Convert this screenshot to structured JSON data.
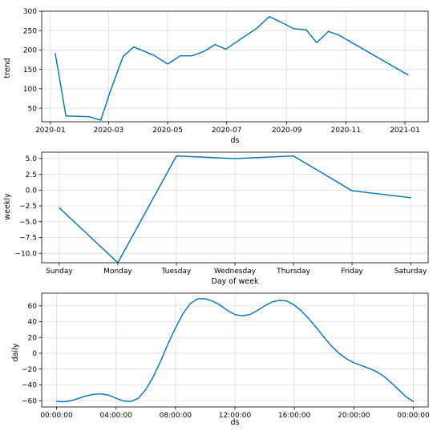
{
  "colors": {
    "series": "#0072B2"
  },
  "chart_data": [
    {
      "type": "line",
      "xlabel": "ds",
      "ylabel": "trend",
      "x_type": "date",
      "xlim": [
        "2019-12-23",
        "2021-01-25"
      ],
      "ylim": [
        15,
        300
      ],
      "grid": true,
      "xticks": [
        {
          "value": "2020-01-01",
          "label": "2020-01"
        },
        {
          "value": "2020-03-01",
          "label": "2020-03"
        },
        {
          "value": "2020-05-01",
          "label": "2020-05"
        },
        {
          "value": "2020-07-01",
          "label": "2020-07"
        },
        {
          "value": "2020-09-01",
          "label": "2020-09"
        },
        {
          "value": "2020-11-01",
          "label": "2020-11"
        },
        {
          "value": "2021-01-01",
          "label": "2021-01"
        }
      ],
      "yticks": [
        {
          "value": 50,
          "label": "50"
        },
        {
          "value": 100,
          "label": "100"
        },
        {
          "value": 150,
          "label": "150"
        },
        {
          "value": 200,
          "label": "200"
        },
        {
          "value": 250,
          "label": "250"
        },
        {
          "value": 300,
          "label": "300"
        }
      ],
      "series": [
        {
          "points": [
            [
              "2020-01-06",
              191
            ],
            [
              "2020-01-17",
              30
            ],
            [
              "2020-02-10",
              28
            ],
            [
              "2020-02-22",
              19
            ],
            [
              "2020-03-03",
              95
            ],
            [
              "2020-03-16",
              183
            ],
            [
              "2020-03-27",
              208
            ],
            [
              "2020-04-17",
              186
            ],
            [
              "2020-05-01",
              164
            ],
            [
              "2020-05-14",
              185
            ],
            [
              "2020-05-26",
              185
            ],
            [
              "2020-06-08",
              197
            ],
            [
              "2020-06-19",
              214
            ],
            [
              "2020-06-30",
              202
            ],
            [
              "2020-08-01",
              256
            ],
            [
              "2020-08-14",
              286
            ],
            [
              "2020-08-26",
              272
            ],
            [
              "2020-09-08",
              255
            ],
            [
              "2020-09-21",
              252
            ],
            [
              "2020-10-02",
              219
            ],
            [
              "2020-10-14",
              248
            ],
            [
              "2020-10-25",
              238
            ],
            [
              "2021-01-04",
              136
            ]
          ]
        }
      ]
    },
    {
      "type": "line",
      "xlabel": "Day of week",
      "ylabel": "weekly",
      "categories": [
        "Sunday",
        "Monday",
        "Tuesday",
        "Wednesday",
        "Thursday",
        "Friday",
        "Saturday"
      ],
      "xlim": [
        -0.3,
        6.3
      ],
      "ylim": [
        -11.5,
        6.0
      ],
      "grid": true,
      "yticks": [
        {
          "value": 5.0,
          "label": "5.0"
        },
        {
          "value": 2.5,
          "label": "2.5"
        },
        {
          "value": 0.0,
          "label": "0.0"
        },
        {
          "value": -2.5,
          "label": "−2.5"
        },
        {
          "value": -5.0,
          "label": "−5.0"
        },
        {
          "value": -7.5,
          "label": "−7.5"
        },
        {
          "value": -10.0,
          "label": "−10.0"
        }
      ],
      "series": [
        {
          "values": [
            -2.8,
            -11.5,
            5.4,
            5.0,
            5.4,
            -0.1,
            -1.2
          ]
        }
      ]
    },
    {
      "type": "line",
      "xlabel": "ds",
      "ylabel": "daily",
      "x_unit": "hours",
      "xlim": [
        -1.0,
        25.0
      ],
      "ylim": [
        -68,
        76
      ],
      "grid": true,
      "xticks": [
        {
          "value": 0,
          "label": "00:00:00"
        },
        {
          "value": 4,
          "label": "04:00:00"
        },
        {
          "value": 8,
          "label": "08:00:00"
        },
        {
          "value": 12,
          "label": "12:00:00"
        },
        {
          "value": 16,
          "label": "16:00:00"
        },
        {
          "value": 20,
          "label": "20:00:00"
        },
        {
          "value": 24,
          "label": "00:00:00"
        }
      ],
      "yticks": [
        {
          "value": 60,
          "label": "60"
        },
        {
          "value": 40,
          "label": "40"
        },
        {
          "value": 20,
          "label": "20"
        },
        {
          "value": 0,
          "label": "0"
        },
        {
          "value": -20,
          "label": "−20"
        },
        {
          "value": -40,
          "label": "−40"
        },
        {
          "value": -60,
          "label": "−60"
        }
      ],
      "series": [
        {
          "points": [
            [
              0,
              -61
            ],
            [
              0.5,
              -61.5
            ],
            [
              1.0,
              -60
            ],
            [
              1.5,
              -57
            ],
            [
              2.0,
              -54
            ],
            [
              2.5,
              -52
            ],
            [
              3.0,
              -51.5
            ],
            [
              3.5,
              -53
            ],
            [
              4.0,
              -57
            ],
            [
              4.5,
              -60.5
            ],
            [
              5.0,
              -61
            ],
            [
              5.5,
              -57
            ],
            [
              6.0,
              -46
            ],
            [
              6.5,
              -30
            ],
            [
              7.0,
              -10
            ],
            [
              7.5,
              12
            ],
            [
              8.0,
              32
            ],
            [
              8.5,
              50
            ],
            [
              9.0,
              63
            ],
            [
              9.5,
              69
            ],
            [
              10.0,
              69
            ],
            [
              10.5,
              66
            ],
            [
              11.0,
              61
            ],
            [
              11.5,
              54
            ],
            [
              12.0,
              49
            ],
            [
              12.5,
              47.5
            ],
            [
              13.0,
              49
            ],
            [
              13.5,
              54
            ],
            [
              14.0,
              60
            ],
            [
              14.5,
              65
            ],
            [
              15.0,
              67
            ],
            [
              15.5,
              66
            ],
            [
              16.0,
              61
            ],
            [
              16.5,
              53
            ],
            [
              17.0,
              43
            ],
            [
              17.5,
              32
            ],
            [
              18.0,
              20
            ],
            [
              18.5,
              9
            ],
            [
              19.0,
              0
            ],
            [
              19.5,
              -7
            ],
            [
              20.0,
              -12
            ],
            [
              20.5,
              -15.5
            ],
            [
              21.0,
              -19
            ],
            [
              21.5,
              -23
            ],
            [
              22.0,
              -29
            ],
            [
              22.5,
              -37
            ],
            [
              23.0,
              -46
            ],
            [
              23.5,
              -55
            ],
            [
              24.0,
              -61
            ]
          ]
        }
      ]
    }
  ]
}
